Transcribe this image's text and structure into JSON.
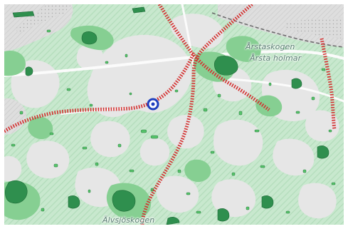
{
  "map": {
    "labels": {
      "arstaskogen": "Årstaskogen",
      "arsta_holmar": "Årsta holmar",
      "alvsjoskogen": "Älvsjöskogen"
    },
    "icons": {
      "location_marker": "location-marker-icon"
    },
    "colors": {
      "background": "#e6e6e6",
      "forest_light": "#c6e6cc",
      "forest_medium": "#7fcc8c",
      "forest_dark": "#2f8f4e",
      "route_dashed": "#d42f2f",
      "railway": "#6c6c6c",
      "marker": "#1f3fbf"
    }
  }
}
